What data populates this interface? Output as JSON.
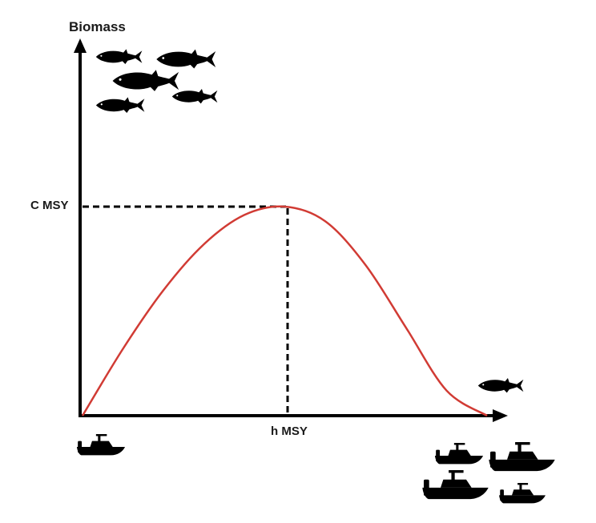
{
  "diagram": {
    "y_axis_label": "Biomass",
    "y_marker_label": "C MSY",
    "x_marker_label": "h MSY",
    "curve_color": "#d13b34",
    "axis_color": "#000000",
    "icon_color": "#000000"
  },
  "chart_data": {
    "type": "line",
    "title": "",
    "xlabel": "",
    "ylabel": "Biomass",
    "series": [
      {
        "x": [
          0,
          0.1,
          0.2,
          0.3,
          0.4,
          0.5,
          0.6,
          0.7,
          0.8,
          0.9,
          1.0
        ],
        "y": [
          0,
          0.32,
          0.6,
          0.82,
          0.96,
          1.0,
          0.93,
          0.72,
          0.42,
          0.12,
          0
        ]
      }
    ],
    "annotations": [
      {
        "label": "C MSY",
        "axis": "y",
        "value": 1.0
      },
      {
        "label": "h MSY",
        "axis": "x",
        "value": 0.5
      }
    ],
    "xlim": [
      0,
      1
    ],
    "ylim": [
      0,
      1
    ],
    "grid": false,
    "legend": "none"
  },
  "icons": {
    "fish_group_top_left": [
      "fish-icon",
      "fish-icon",
      "fish-icon",
      "fish-icon",
      "fish-icon"
    ],
    "fish_single_right": [
      "fish-icon"
    ],
    "boat_single_left": [
      "boat-icon"
    ],
    "boat_group_bottom_right": [
      "boat-icon",
      "boat-icon",
      "boat-icon",
      "boat-icon"
    ]
  }
}
